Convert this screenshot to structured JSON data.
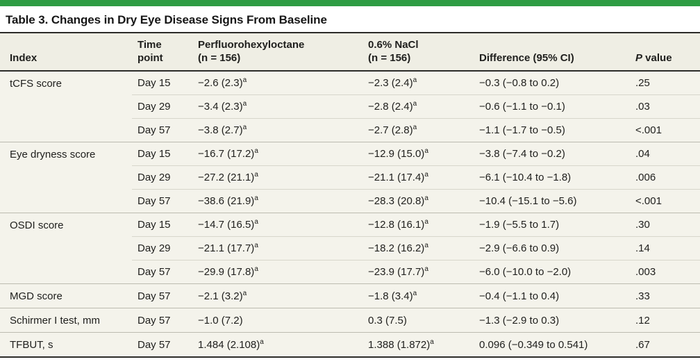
{
  "page": {
    "accent_color": "#2E9C43",
    "body_background": "#F4F3EB",
    "header_background": "#EFEEE4",
    "rule_color": "#2c2c29"
  },
  "table": {
    "title": "Table 3. Changes in Dry Eye Disease Signs From Baseline",
    "columns": [
      {
        "id": "index",
        "lines": [
          "Index"
        ]
      },
      {
        "id": "time",
        "lines": [
          "Time",
          "point"
        ]
      },
      {
        "id": "pfho",
        "lines": [
          "Perfluorohexyloctane",
          "(n = 156)"
        ]
      },
      {
        "id": "nacl",
        "lines": [
          "0.6% NaCl",
          "(n = 156)"
        ]
      },
      {
        "id": "diff",
        "lines": [
          "Difference (95% CI)"
        ]
      },
      {
        "id": "pvalue",
        "lines": [
          "P value"
        ],
        "italic_first_word": true
      }
    ],
    "footnote_marker": "a",
    "groups": [
      {
        "index": "tCFS score",
        "rows": [
          {
            "time": "Day 15",
            "pfho": "−2.6 (2.3)",
            "pfho_sup": "a",
            "nacl": "−2.3 (2.4)",
            "nacl_sup": "a",
            "diff": "−0.3 (−0.8 to 0.2)",
            "p": ".25"
          },
          {
            "time": "Day 29",
            "pfho": "−3.4 (2.3)",
            "pfho_sup": "a",
            "nacl": "−2.8 (2.4)",
            "nacl_sup": "a",
            "diff": "−0.6 (−1.1 to −0.1)",
            "p": ".03"
          },
          {
            "time": "Day 57",
            "pfho": "−3.8 (2.7)",
            "pfho_sup": "a",
            "nacl": "−2.7 (2.8)",
            "nacl_sup": "a",
            "diff": "−1.1 (−1.7 to −0.5)",
            "p": "<.001"
          }
        ]
      },
      {
        "index": "Eye dryness score",
        "rows": [
          {
            "time": "Day 15",
            "pfho": "−16.7 (17.2)",
            "pfho_sup": "a",
            "nacl": "−12.9 (15.0)",
            "nacl_sup": "a",
            "diff": "−3.8 (−7.4 to −0.2)",
            "p": ".04"
          },
          {
            "time": "Day 29",
            "pfho": "−27.2 (21.1)",
            "pfho_sup": "a",
            "nacl": "−21.1 (17.4)",
            "nacl_sup": "a",
            "diff": "−6.1 (−10.4 to −1.8)",
            "p": ".006"
          },
          {
            "time": "Day 57",
            "pfho": "−38.6 (21.9)",
            "pfho_sup": "a",
            "nacl": "−28.3 (20.8)",
            "nacl_sup": "a",
            "diff": "−10.4 (−15.1 to −5.6)",
            "p": "<.001"
          }
        ]
      },
      {
        "index": "OSDI score",
        "rows": [
          {
            "time": "Day 15",
            "pfho": "−14.7 (16.5)",
            "pfho_sup": "a",
            "nacl": "−12.8 (16.1)",
            "nacl_sup": "a",
            "diff": "−1.9 (−5.5 to 1.7)",
            "p": ".30"
          },
          {
            "time": "Day 29",
            "pfho": "−21.1 (17.7)",
            "pfho_sup": "a",
            "nacl": "−18.2 (16.2)",
            "nacl_sup": "a",
            "diff": "−2.9 (−6.6 to 0.9)",
            "p": ".14"
          },
          {
            "time": "Day 57",
            "pfho": "−29.9 (17.8)",
            "pfho_sup": "a",
            "nacl": "−23.9 (17.7)",
            "nacl_sup": "a",
            "diff": "−6.0 (−10.0 to −2.0)",
            "p": ".003"
          }
        ]
      },
      {
        "index": "MGD score",
        "rows": [
          {
            "time": "Day 57",
            "pfho": "−2.1 (3.2)",
            "pfho_sup": "a",
            "nacl": "−1.8 (3.4)",
            "nacl_sup": "a",
            "diff": "−0.4 (−1.1 to 0.4)",
            "p": ".33"
          }
        ]
      },
      {
        "index": "Schirmer I test, mm",
        "rows": [
          {
            "time": "Day 57",
            "pfho": "−1.0 (7.2)",
            "nacl": "0.3 (7.5)",
            "diff": "−1.3 (−2.9 to 0.3)",
            "p": ".12"
          }
        ]
      },
      {
        "index": "TFBUT, s",
        "rows": [
          {
            "time": "Day 57",
            "pfho": "1.484 (2.108)",
            "pfho_sup": "a",
            "nacl": "1.388 (1.872)",
            "nacl_sup": "a",
            "diff": "0.096 (−0.349 to 0.541)",
            "p": ".67"
          }
        ]
      }
    ]
  }
}
